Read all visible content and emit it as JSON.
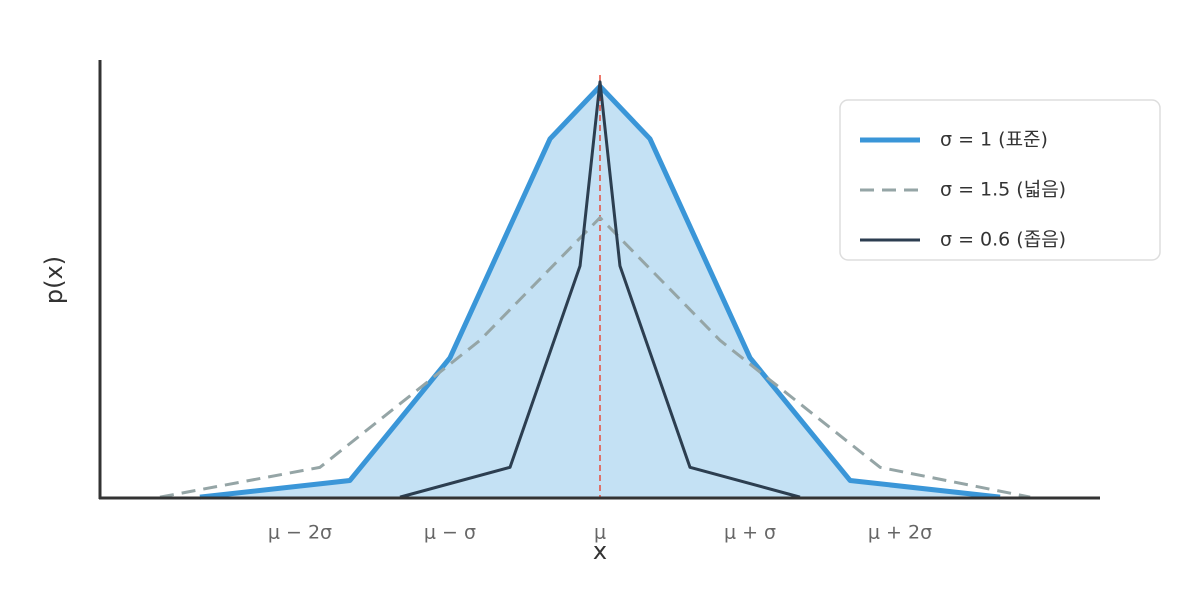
{
  "chart_data": {
    "type": "line",
    "xlabel": "x",
    "ylabel": "p(x)",
    "xlim": [
      -3.333,
      3.333
    ],
    "ylim": [
      0,
      1
    ],
    "xticks": [
      {
        "value": -2,
        "label": "μ − 2σ"
      },
      {
        "value": -1,
        "label": "μ − σ"
      },
      {
        "value": 0,
        "label": "μ"
      },
      {
        "value": 1,
        "label": "μ + σ"
      },
      {
        "value": 2,
        "label": "μ + 2σ"
      }
    ],
    "mean_line": 0,
    "mean_line_color": "#e74c3c",
    "legend": "upper right",
    "series": [
      {
        "name": "σ = 1 (표준)",
        "color": "#3a96d8",
        "fill": "#c4e1f4",
        "dashed": false,
        "x": [
          -2.667,
          -1.667,
          -1,
          -0.333,
          0,
          0.333,
          1,
          1.667,
          2.667
        ],
        "values": [
          0.002,
          0.04,
          0.32,
          0.82,
          0.94,
          0.82,
          0.32,
          0.04,
          0.002
        ]
      },
      {
        "name": "σ = 1.5 (넓음)",
        "color": "#95a5a6",
        "dashed": true,
        "x": [
          -2.933,
          -1.867,
          -0.8,
          0,
          0.8,
          1.867,
          2.867
        ],
        "values": [
          0.002,
          0.07,
          0.36,
          0.64,
          0.36,
          0.07,
          0.002
        ]
      },
      {
        "name": "σ = 0.6 (좁음)",
        "color": "#2c3e50",
        "dashed": false,
        "x": [
          -1.333,
          -0.6,
          -0.133,
          0,
          0.133,
          0.6,
          1.333
        ],
        "values": [
          0.002,
          0.07,
          0.53,
          0.95,
          0.53,
          0.07,
          0.002
        ]
      }
    ]
  }
}
